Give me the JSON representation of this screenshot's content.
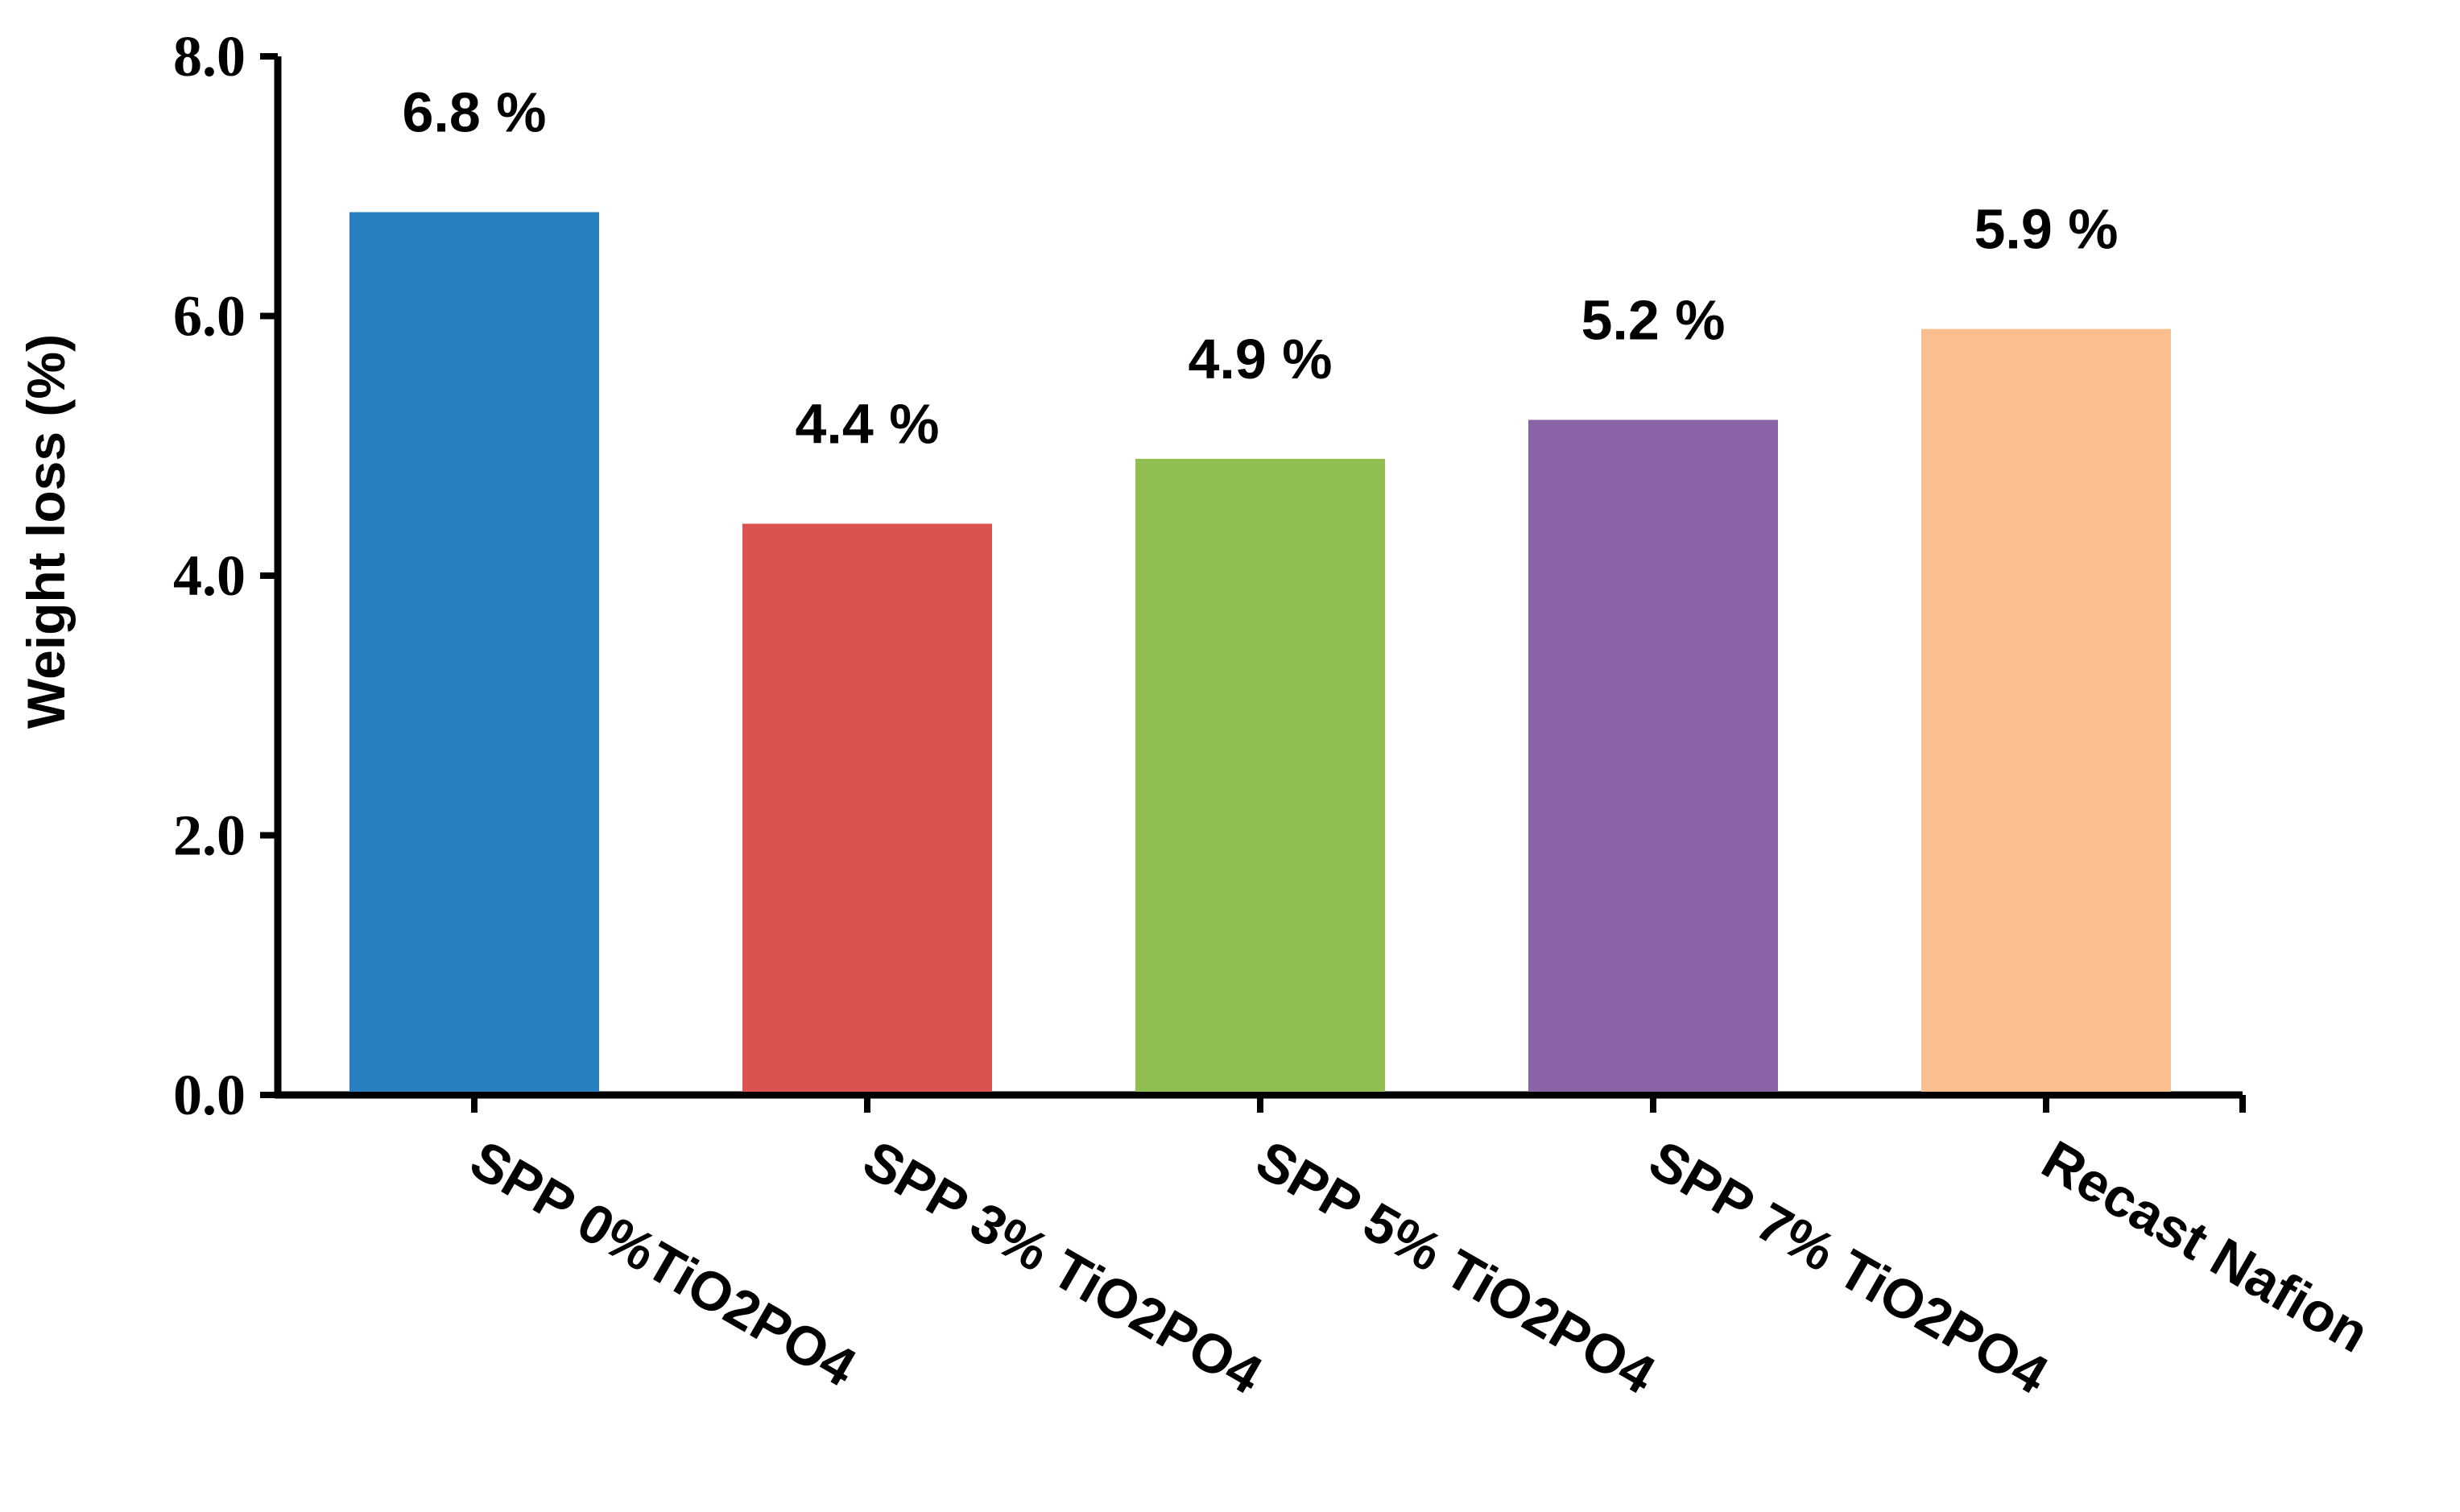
{
  "chart_data": {
    "type": "bar",
    "title": "",
    "xlabel": "",
    "ylabel": "Weight loss (%)",
    "ylim": [
      0,
      8
    ],
    "yticks": [
      "0.0",
      "2.0",
      "4.0",
      "6.0",
      "8.0"
    ],
    "grid": false,
    "legend": "none",
    "categories": [
      "SPP 0%TiO2PO4",
      "SPP 3% TiO2PO4",
      "SPP 5% TiO2PO4",
      "SPP 7% TiO2PO4",
      "Recast Nafion"
    ],
    "values": [
      6.8,
      4.4,
      4.9,
      5.2,
      5.9
    ],
    "data_labels": [
      "6.8 %",
      "4.4 %",
      "4.9 %",
      "5.2 %",
      "5.9 %"
    ],
    "colors": [
      "#2880C0",
      "#DC524E",
      "#90BE50",
      "#8B64A7",
      "#FBBF8F"
    ]
  }
}
